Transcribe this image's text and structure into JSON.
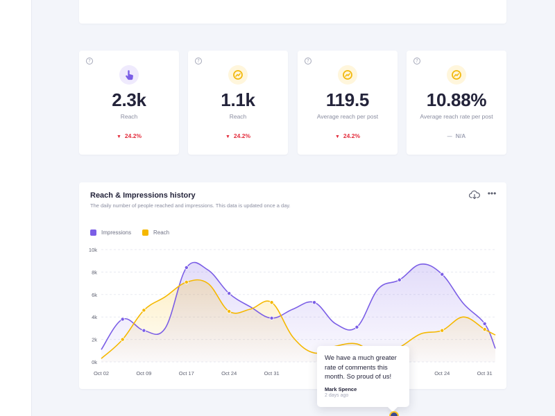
{
  "stats": [
    {
      "value": "2.3k",
      "label": "Reach",
      "change": "24.2%",
      "trend": "down",
      "icon": "pointer-icon",
      "icon_bg": "#efeafd",
      "icon_color": "#7b5ee6"
    },
    {
      "value": "1.1k",
      "label": "Reach",
      "change": "24.2%",
      "trend": "down",
      "icon": "chart-icon",
      "icon_bg": "#fff6dc",
      "icon_color": "#f2b90f"
    },
    {
      "value": "119.5",
      "label": "Average reach per post",
      "change": "24.2%",
      "trend": "down",
      "icon": "chart-icon",
      "icon_bg": "#fff6dc",
      "icon_color": "#f2b90f"
    },
    {
      "value": "10.88%",
      "label": "Average reach rate per post",
      "change": "N/A",
      "trend": "neutral",
      "icon": "chart-icon",
      "icon_bg": "#fff6dc",
      "icon_color": "#f2b90f"
    }
  ],
  "help_glyph": "?",
  "down_arrow": "▼",
  "neutral_dash": "—",
  "chart_card": {
    "title": "Reach & Impressions history",
    "subtitle": "The daily number of people reached and impressions. This data is updated once a day.",
    "more_glyph": "•••"
  },
  "chart_data": {
    "type": "area",
    "title": "Reach & Impressions history",
    "xlabel": "",
    "ylabel": "",
    "x_ticks": [
      "Oct 02",
      "Oct 09",
      "Oct 17",
      "Oct 24",
      "Oct 31",
      "",
      "",
      "",
      "Oct 24",
      "Oct 31"
    ],
    "y_ticks": [
      "0k",
      "2k",
      "4k",
      "6k",
      "8k",
      "10k"
    ],
    "ylim": [
      0,
      10000
    ],
    "grid": true,
    "legend_position": "top-left",
    "x": [
      0,
      0.5,
      1,
      1.5,
      2,
      2.5,
      3,
      3.5,
      4,
      4.5,
      5,
      5.5,
      6,
      6.5,
      7,
      7.5,
      8,
      8.5,
      9,
      9.25
    ],
    "series": [
      {
        "name": "Impressions",
        "color": "#7b5ee6",
        "values": [
          1100,
          3800,
          2800,
          3000,
          8400,
          8200,
          6100,
          4900,
          3900,
          4700,
          5300,
          3400,
          3100,
          6500,
          7300,
          8700,
          7800,
          5200,
          3400,
          1200
        ],
        "markers": [
          1,
          2,
          4,
          6,
          8,
          10,
          12,
          14,
          16,
          18
        ]
      },
      {
        "name": "Reach",
        "color": "#f5b800",
        "values": [
          300,
          2000,
          4600,
          5800,
          7100,
          7000,
          4500,
          4700,
          5300,
          2200,
          800,
          1400,
          1600,
          600,
          1300,
          2500,
          2800,
          4000,
          2900,
          2400
        ],
        "markers": [
          1,
          2,
          4,
          6,
          8,
          16,
          18
        ]
      }
    ]
  },
  "tooltip": {
    "text": "We have a much greater rate of comments this month. So proud of us!",
    "author": "Mark Spence",
    "time": "2 days ago"
  }
}
